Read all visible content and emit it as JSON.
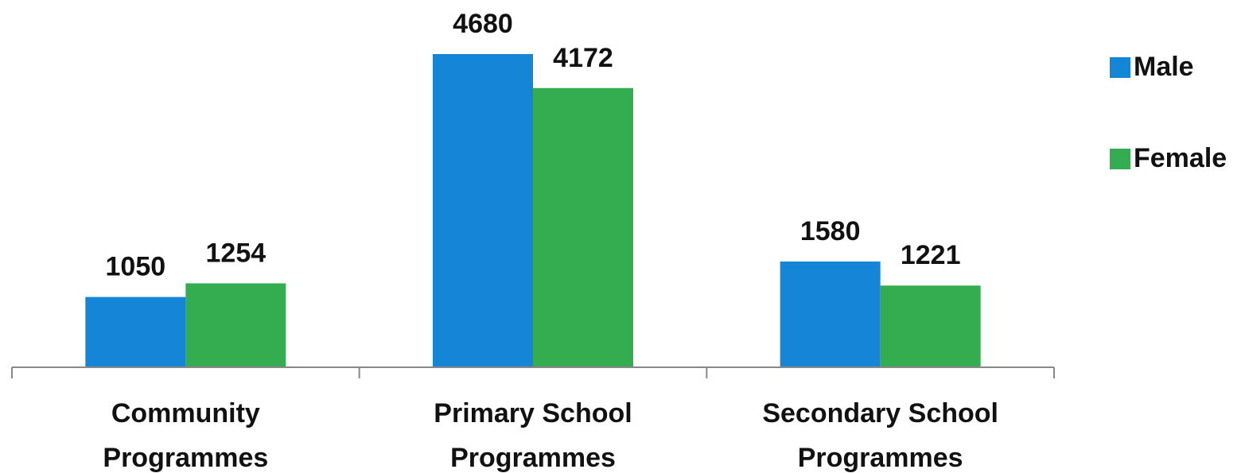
{
  "chart_data": {
    "type": "bar",
    "categories": [
      "Community Programmes",
      "Primary School Programmes",
      "Secondary School Programmes"
    ],
    "series": [
      {
        "name": "Male",
        "color": "#1585d8",
        "values": [
          1050,
          4680,
          1580
        ]
      },
      {
        "name": "Female",
        "color": "#34ad50",
        "values": [
          1254,
          4172,
          1221
        ]
      }
    ],
    "legend": "right"
  }
}
